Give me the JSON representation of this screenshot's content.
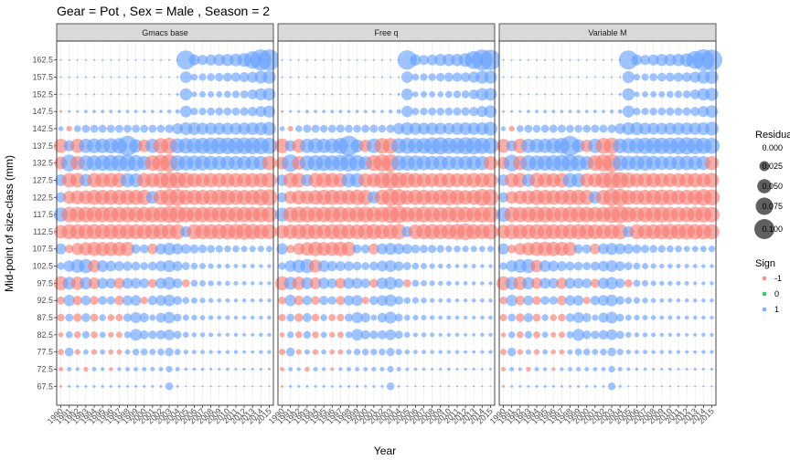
{
  "chart_data": {
    "type": "scatter",
    "title": "Gear = Pot , Sex = Male , Season = 2",
    "xlabel": "Year",
    "ylabel": "Mid-point of size-class (mm)",
    "years": [
      1990,
      1991,
      1992,
      1993,
      1994,
      1995,
      1996,
      1997,
      1998,
      1999,
      2000,
      2001,
      2002,
      2003,
      2004,
      2005,
      2006,
      2007,
      2008,
      2009,
      2010,
      2011,
      2012,
      2013,
      2014,
      2015
    ],
    "size_classes": [
      67.5,
      72.5,
      77.5,
      82.5,
      87.5,
      92.5,
      97.5,
      102.5,
      107.5,
      112.5,
      117.5,
      122.5,
      127.5,
      132.5,
      137.5,
      142.5,
      147.5,
      152.5,
      157.5,
      162.5
    ],
    "panels": [
      "Gmacs base",
      "Free q",
      "Variable M"
    ],
    "colors": {
      "negative": "#F8766D",
      "zero": "#00BA38",
      "positive": "#619CFF"
    },
    "legend_size": {
      "title": "Residual",
      "values": [
        0.0,
        0.025,
        0.05,
        0.075,
        0.1
      ],
      "labels": [
        "0.000",
        "0.025",
        "0.050",
        "0.075",
        "0.100"
      ]
    },
    "legend_color": {
      "title": "Sign",
      "labels": [
        "-1",
        "0",
        "1"
      ]
    },
    "residual_rows": {
      "67.5": [
        -0.002,
        0.002,
        0.002,
        0.002,
        0.002,
        0.002,
        0.002,
        0.002,
        0.002,
        0.002,
        0.002,
        0.002,
        0.002,
        0.015,
        0.002,
        0.001,
        0.001,
        0.001,
        0.001,
        0.001,
        0.001,
        0.001,
        0.001,
        0.001,
        0.001,
        0.001
      ],
      "72.5": [
        -0.005,
        0.005,
        0.004,
        -0.006,
        0.005,
        0.004,
        -0.004,
        0.004,
        0.005,
        0.005,
        0.005,
        0.005,
        0.005,
        0.011,
        0.005,
        0.003,
        0.003,
        0.003,
        0.002,
        0.002,
        0.003,
        0.002,
        0.002,
        0.002,
        0.002,
        0.002
      ],
      "77.5": [
        -0.01,
        0.02,
        -0.008,
        0.007,
        -0.008,
        0.007,
        -0.007,
        -0.007,
        0.007,
        0.012,
        0.012,
        0.01,
        0.012,
        0.018,
        0.01,
        0.006,
        0.005,
        0.005,
        0.004,
        0.004,
        0.004,
        0.004,
        0.003,
        0.003,
        0.004,
        0.004
      ],
      "82.5": [
        -0.006,
        0.012,
        -0.012,
        0.014,
        -0.012,
        0.01,
        -0.008,
        -0.01,
        0.012,
        0.035,
        0.02,
        0.018,
        0.022,
        0.028,
        0.016,
        0.009,
        0.006,
        0.006,
        0.005,
        0.004,
        0.004,
        0.004,
        0.003,
        0.003,
        0.004,
        0.004
      ],
      "87.5": [
        -0.014,
        0.016,
        -0.018,
        0.02,
        -0.016,
        0.012,
        -0.012,
        -0.014,
        0.018,
        0.03,
        0.022,
        0.01,
        0.024,
        0.034,
        0.016,
        0.01,
        0.008,
        0.007,
        0.006,
        0.005,
        0.005,
        0.004,
        0.004,
        0.004,
        0.004,
        0.004
      ],
      "92.5": [
        -0.016,
        0.032,
        -0.022,
        0.024,
        -0.02,
        0.02,
        0.018,
        -0.022,
        0.026,
        0.028,
        -0.014,
        0.022,
        0.028,
        0.034,
        0.02,
        0.012,
        0.01,
        0.008,
        0.006,
        0.005,
        0.005,
        0.004,
        0.004,
        0.004,
        0.004,
        0.004
      ],
      "97.5": [
        -0.05,
        0.04,
        -0.044,
        0.038,
        -0.034,
        0.03,
        0.026,
        -0.03,
        0.03,
        0.028,
        0.024,
        -0.02,
        0.03,
        0.04,
        0.024,
        -0.016,
        0.012,
        0.01,
        0.008,
        0.006,
        0.006,
        0.005,
        0.005,
        0.004,
        0.004,
        0.004
      ],
      "102.5": [
        0.014,
        0.032,
        0.045,
        0.05,
        -0.04,
        0.034,
        0.028,
        0.024,
        0.022,
        0.02,
        0.016,
        0.02,
        0.028,
        0.036,
        0.024,
        0.016,
        0.012,
        0.01,
        0.008,
        0.006,
        0.006,
        0.005,
        0.005,
        0.005,
        0.004,
        0.004
      ],
      "107.5": [
        0.03,
        -0.018,
        -0.036,
        -0.044,
        -0.05,
        -0.05,
        -0.05,
        -0.05,
        -0.05,
        0.022,
        0.02,
        -0.028,
        0.03,
        0.038,
        0.03,
        0.024,
        0.02,
        0.018,
        0.016,
        0.014,
        0.012,
        0.012,
        0.01,
        0.01,
        0.01,
        0.01
      ],
      "112.5": [
        -0.044,
        -0.056,
        -0.056,
        -0.056,
        -0.056,
        -0.056,
        -0.056,
        -0.056,
        -0.056,
        -0.056,
        -0.056,
        -0.056,
        -0.056,
        -0.056,
        -0.056,
        0.03,
        -0.056,
        -0.056,
        -0.056,
        -0.056,
        -0.06,
        -0.06,
        -0.066,
        -0.06,
        -0.056,
        -0.056
      ],
      "117.5": [
        0.05,
        -0.06,
        -0.06,
        -0.06,
        -0.06,
        -0.06,
        -0.06,
        -0.06,
        -0.06,
        -0.06,
        -0.06,
        -0.06,
        -0.06,
        -0.07,
        -0.072,
        -0.06,
        -0.06,
        -0.06,
        -0.06,
        -0.06,
        -0.06,
        -0.06,
        -0.06,
        -0.06,
        -0.06,
        -0.06
      ],
      "122.5": [
        0.026,
        -0.04,
        -0.048,
        -0.048,
        -0.056,
        -0.056,
        -0.056,
        -0.056,
        -0.056,
        -0.056,
        -0.056,
        0.04,
        -0.056,
        -0.07,
        -0.07,
        -0.056,
        -0.056,
        -0.056,
        -0.056,
        -0.06,
        -0.06,
        -0.056,
        -0.056,
        -0.056,
        -0.066,
        -0.066
      ],
      "127.5": [
        0.034,
        -0.052,
        -0.052,
        0.04,
        -0.052,
        -0.052,
        -0.052,
        -0.052,
        0.05,
        0.048,
        -0.05,
        -0.05,
        -0.06,
        -0.07,
        -0.066,
        -0.06,
        -0.05,
        -0.05,
        -0.05,
        -0.05,
        -0.05,
        -0.05,
        -0.05,
        -0.05,
        -0.05,
        -0.056
      ],
      "132.5": [
        -0.04,
        0.07,
        -0.05,
        0.058,
        0.058,
        0.062,
        0.064,
        0.066,
        0.068,
        0.064,
        0.05,
        -0.06,
        -0.07,
        -0.076,
        0.06,
        0.056,
        0.056,
        0.056,
        0.052,
        0.05,
        0.05,
        0.05,
        0.05,
        0.05,
        0.05,
        -0.052
      ],
      "137.5": [
        -0.05,
        0.03,
        -0.05,
        0.05,
        0.054,
        0.054,
        0.058,
        0.06,
        0.1,
        0.044,
        -0.04,
        0.05,
        -0.06,
        -0.064,
        0.056,
        0.06,
        0.06,
        0.064,
        0.068,
        0.07,
        0.068,
        0.068,
        0.07,
        0.07,
        0.068,
        0.064
      ],
      "142.5": [
        0.006,
        -0.008,
        0.012,
        0.016,
        0.016,
        0.016,
        0.016,
        0.016,
        0.016,
        0.016,
        0.016,
        0.016,
        0.016,
        0.018,
        0.03,
        0.04,
        0.04,
        0.036,
        0.036,
        0.036,
        0.036,
        0.036,
        0.038,
        0.04,
        0.042,
        0.046
      ],
      "147.5": [
        -0.002,
        0.002,
        0.002,
        0.003,
        0.003,
        0.003,
        0.003,
        0.003,
        0.003,
        0.003,
        0.003,
        0.003,
        0.003,
        0.004,
        0.005,
        0.034,
        0.014,
        0.014,
        0.016,
        0.016,
        0.016,
        0.016,
        0.018,
        0.022,
        0.03,
        0.036
      ],
      "152.5": [
        0.001,
        0.001,
        0.001,
        0.001,
        0.001,
        0.001,
        0.001,
        0.001,
        0.001,
        0.001,
        0.001,
        0.001,
        0.001,
        0.001,
        0.002,
        0.036,
        0.008,
        0.01,
        0.01,
        0.01,
        0.012,
        0.014,
        0.016,
        0.024,
        0.036,
        0.04
      ],
      "157.5": [
        0.001,
        0.001,
        0.001,
        0.001,
        0.001,
        0.001,
        0.001,
        0.001,
        0.001,
        0.001,
        0.001,
        0.001,
        0.001,
        0.001,
        0.001,
        0.034,
        0.012,
        0.014,
        0.016,
        0.018,
        0.02,
        0.022,
        0.024,
        0.03,
        0.04,
        0.044
      ],
      "162.5": [
        0.001,
        0.001,
        0.001,
        0.001,
        0.001,
        0.001,
        0.001,
        0.001,
        0.001,
        0.001,
        0.001,
        0.001,
        0.001,
        0.001,
        0.001,
        0.09,
        0.03,
        0.026,
        0.03,
        0.034,
        0.036,
        0.04,
        0.046,
        0.076,
        0.11,
        0.11
      ]
    }
  }
}
